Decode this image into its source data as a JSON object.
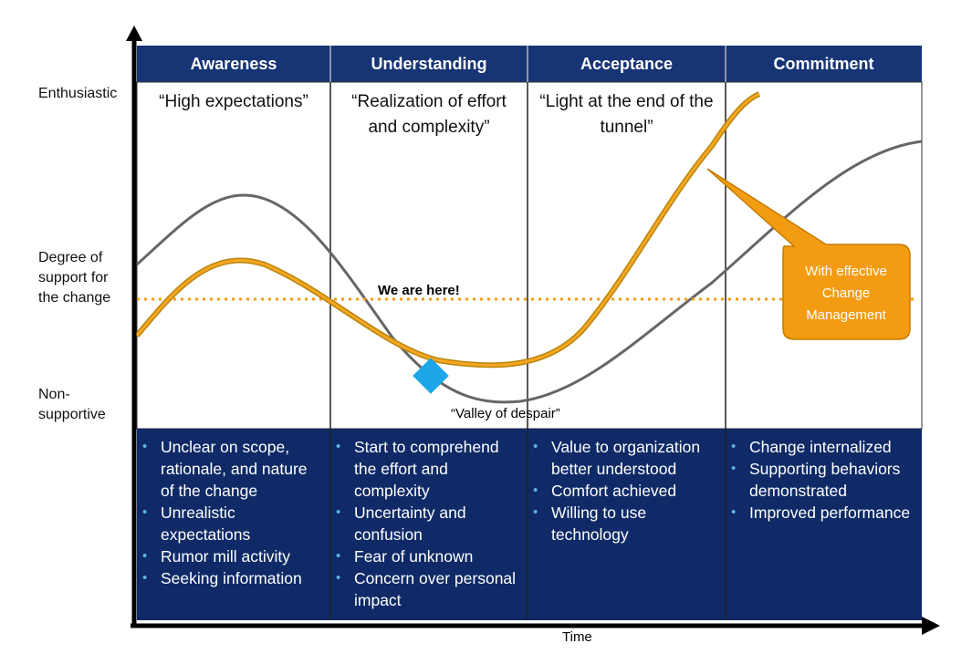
{
  "axis": {
    "y_labels": [
      "Enthusiastic",
      "Degree of support for the change",
      "Non-supportive"
    ],
    "x_label": "Time"
  },
  "phases": [
    {
      "name": "Awareness",
      "quote": "“High expectations”",
      "bullets": [
        "Unclear on scope, rationale, and nature of the change",
        "Unrealistic expectations",
        "Rumor mill activity",
        "Seeking information"
      ]
    },
    {
      "name": "Understanding",
      "quote": "“Realization of effort and complexity”",
      "bullets": [
        "Start to comprehend the effort and complexity",
        "Uncertainty and confusion",
        "Fear of unknown",
        "Concern over personal impact"
      ]
    },
    {
      "name": "Acceptance",
      "quote": "“Light at the end of the tunnel”",
      "bullets": [
        "Value to organization better understood",
        "Comfort achieved",
        "Willing to use technology"
      ]
    },
    {
      "name": "Commitment",
      "bullets": [
        "Change internalized",
        "Supporting behaviors demonstrated",
        "Improved performance"
      ]
    }
  ],
  "annotations": {
    "here": "We are here!",
    "valley": "“Valley of despair”",
    "callout": "With effective Change Management"
  }
}
